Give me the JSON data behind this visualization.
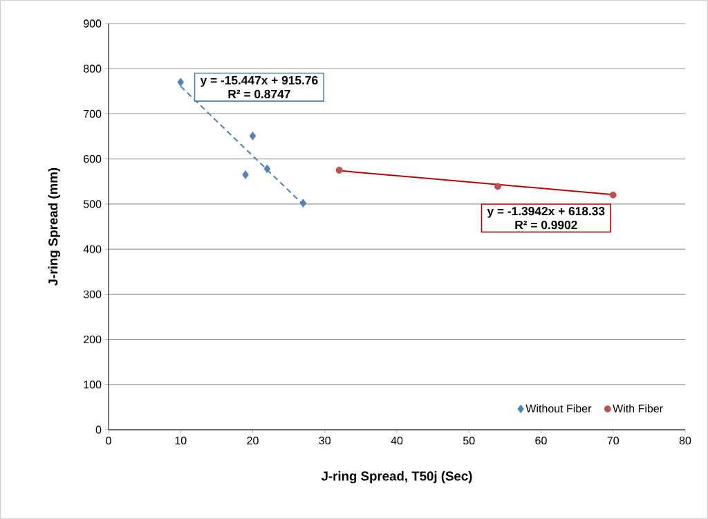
{
  "chart_data": {
    "type": "scatter",
    "xlabel": "J-ring Spread, T50j (Sec)",
    "ylabel": "J-ring Spread  (mm)",
    "xlim": [
      0,
      80
    ],
    "xticks": [
      0,
      10,
      20,
      30,
      40,
      50,
      60,
      70,
      80
    ],
    "ylim": [
      0,
      900
    ],
    "yticks": [
      0,
      100,
      200,
      300,
      400,
      500,
      600,
      700,
      800,
      900
    ],
    "grid": "y",
    "legend": "bottom right",
    "series": [
      {
        "name": "Without Fiber",
        "color": "#4f81bd",
        "marker": "diamond",
        "x": [
          10,
          19,
          20,
          22,
          27
        ],
        "values": [
          770,
          565,
          651,
          578,
          502
        ]
      },
      {
        "name": "With Fiber",
        "color": "#c0504d",
        "marker": "circle",
        "x": [
          32,
          54,
          70
        ],
        "values": [
          575,
          539,
          520
        ]
      },
      {
        "type": "line",
        "color": "#4f81bd",
        "line_style": "dashed",
        "x": [
          10,
          27
        ],
        "values": [
          761,
          499
        ]
      },
      {
        "type": "line",
        "color": "#c00000",
        "line_style": "solid",
        "x": [
          32,
          70
        ],
        "values": [
          574,
          521
        ]
      }
    ],
    "annotations": [
      "y = -15.447x  + 915.76",
      "R² = 0.8747",
      "y = -1.3942x  + 618.33",
      "R² = 0.9902"
    ]
  }
}
